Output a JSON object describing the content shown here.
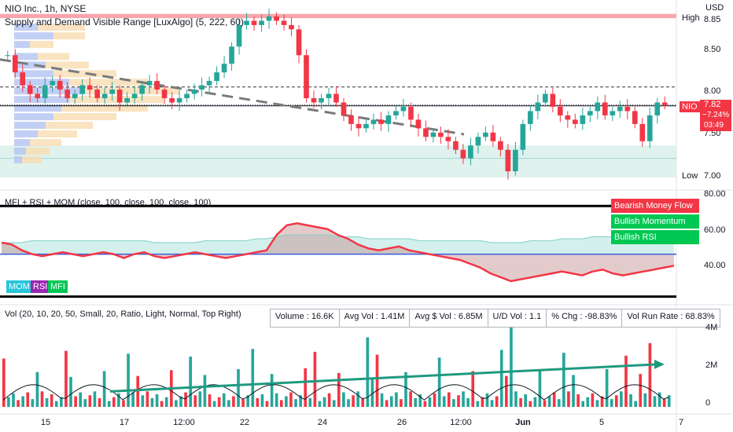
{
  "header": {
    "symbol_line": "NIO Inc., 1h, NYSE",
    "indicator_line": "Supply and Demand Visible Range [LuxAlgo] (5, 222, 60)",
    "currency": "USD",
    "mfi_line": "MFI + RSI + MOM (close, 100, close, 100, close, 100)",
    "vol_line": "Vol (20, 10, 20, 50, Small, 20, Ratio, Light, Normal, Top Right)"
  },
  "price_axis": {
    "ticks": [
      "8.85",
      "8.50",
      "8.00",
      "7.50",
      "7.00"
    ],
    "high_label": "High",
    "low_label": "Low",
    "last_symbol": "NIO",
    "last_price": "7.82",
    "last_change": "−7.24%",
    "last_countdown": "03:49"
  },
  "osc_axis": {
    "ticks": [
      "80.00",
      "60.00",
      "40.00"
    ]
  },
  "vol_axis": {
    "ticks": [
      "4M",
      "2M",
      "0"
    ]
  },
  "x_axis": {
    "labels": [
      "15",
      "17",
      "12:00",
      "22",
      "24",
      "26",
      "12:00",
      "Jun",
      "5",
      "7"
    ]
  },
  "osc_legend": {
    "bearish_mf": "Bearish Money Flow",
    "bullish_mom": "Bullish Momentum",
    "bullish_rsi": "Bullish RSI"
  },
  "osc_pills": {
    "mom": "MOM",
    "rsi": "RSI",
    "mfi": "MFI"
  },
  "vol_stats": {
    "volume": "Volume : 16.6K",
    "avg_vol": "Avg Vol : 1.41M",
    "avg_dollar_vol": "Avg $ Vol : 6.85M",
    "ud_vol": "U/D Vol : 1.1",
    "pct_chg": "% Chg : -98.83%",
    "vol_run_rate": "Vol Run Rate : 68.83%"
  },
  "colors": {
    "up": "#26a69a",
    "down": "#f23645",
    "supply": "#f7a7ac",
    "demand": "#d1ede7",
    "profile_blue": "#b3c3f2",
    "profile_orange": "#f7dcb0",
    "trendline": "#7a7a7a",
    "vol_trend": "#1f9a80",
    "rsi": "#f23645",
    "mfi_fill": "#c9ece8",
    "mom_blue": "#3b5bdb",
    "mfi_pill": "#00c853",
    "rsi_pill": "#9c27b0",
    "mom_pill": "#26c6da"
  },
  "chart_data": [
    {
      "type": "candlestick",
      "title": "NIO Inc., 1h, NYSE",
      "ylim": [
        6.85,
        8.95
      ],
      "last_price": 7.82,
      "high_level": 8.85,
      "low_level": 7.0,
      "x_labels": [
        "15",
        "17",
        "12:00",
        "22",
        "24",
        "26",
        "12:00",
        "Jun",
        "5",
        "7"
      ],
      "close_path": [
        8.4,
        8.2,
        8.05,
        7.95,
        7.9,
        8.05,
        8.1,
        8.0,
        7.9,
        7.95,
        8.05,
        8.0,
        7.9,
        7.95,
        8.0,
        7.85,
        7.9,
        7.95,
        8.05,
        8.1,
        8.0,
        7.9,
        7.85,
        7.9,
        7.95,
        8.0,
        8.05,
        8.1,
        8.2,
        8.3,
        8.5,
        8.75,
        8.8,
        8.75,
        8.8,
        8.85,
        8.8,
        8.75,
        8.7,
        8.4,
        7.9,
        7.85,
        7.9,
        7.95,
        7.85,
        7.7,
        7.6,
        7.55,
        7.6,
        7.65,
        7.6,
        7.7,
        7.75,
        7.8,
        7.65,
        7.55,
        7.45,
        7.5,
        7.45,
        7.4,
        7.3,
        7.2,
        7.35,
        7.45,
        7.5,
        7.4,
        7.3,
        7.05,
        7.3,
        7.6,
        7.75,
        7.85,
        7.95,
        7.8,
        7.7,
        7.65,
        7.6,
        7.7,
        7.75,
        7.85,
        7.7,
        7.75,
        7.8,
        7.75,
        7.6,
        7.4,
        7.7,
        7.85,
        7.82
      ],
      "supply_zone": [
        8.83,
        8.88
      ],
      "demand_zone": [
        6.98,
        7.35
      ],
      "dashed_levels": [
        8.03,
        7.82
      ]
    },
    {
      "type": "line",
      "title": "MFI + RSI + MOM",
      "ylim": [
        25,
        82
      ],
      "levels": [
        75,
        28
      ],
      "series": [
        {
          "name": "RSI",
          "values": [
            56,
            55,
            52,
            50,
            49,
            50,
            51,
            50,
            49,
            50,
            51,
            50,
            48,
            50,
            51,
            49,
            48,
            49,
            50,
            51,
            50,
            49,
            48,
            49,
            50,
            51,
            52,
            60,
            65,
            66,
            65,
            64,
            63,
            60,
            58,
            55,
            53,
            52,
            53,
            54,
            52,
            51,
            50,
            49,
            48,
            47,
            45,
            43,
            40,
            38,
            36,
            37,
            38,
            39,
            40,
            41,
            40,
            39,
            41,
            42,
            40,
            39,
            40,
            41,
            42,
            43,
            44
          ]
        },
        {
          "name": "MFI",
          "values": [
            56,
            56,
            56,
            57,
            57,
            57,
            57,
            57,
            57,
            57,
            57,
            57,
            57,
            57,
            57,
            56,
            56,
            56,
            56,
            56,
            57,
            57,
            57,
            57,
            57,
            58,
            58,
            59,
            60,
            60,
            60,
            60,
            60,
            59,
            59,
            59,
            58,
            58,
            58,
            58,
            58,
            57,
            57,
            57,
            57,
            57,
            57,
            57,
            56,
            56,
            56,
            56,
            57,
            57,
            57,
            58,
            58,
            58,
            59,
            59,
            59,
            59,
            59,
            60,
            60,
            60,
            60
          ]
        }
      ],
      "midline": 50
    },
    {
      "type": "bar",
      "title": "Vol",
      "ylim": [
        0,
        5
      ],
      "y_unit": "M",
      "y_ticks": [
        "4M",
        "2M",
        "0"
      ],
      "trend_start": 0.8,
      "trend_end": 2.2
    }
  ]
}
